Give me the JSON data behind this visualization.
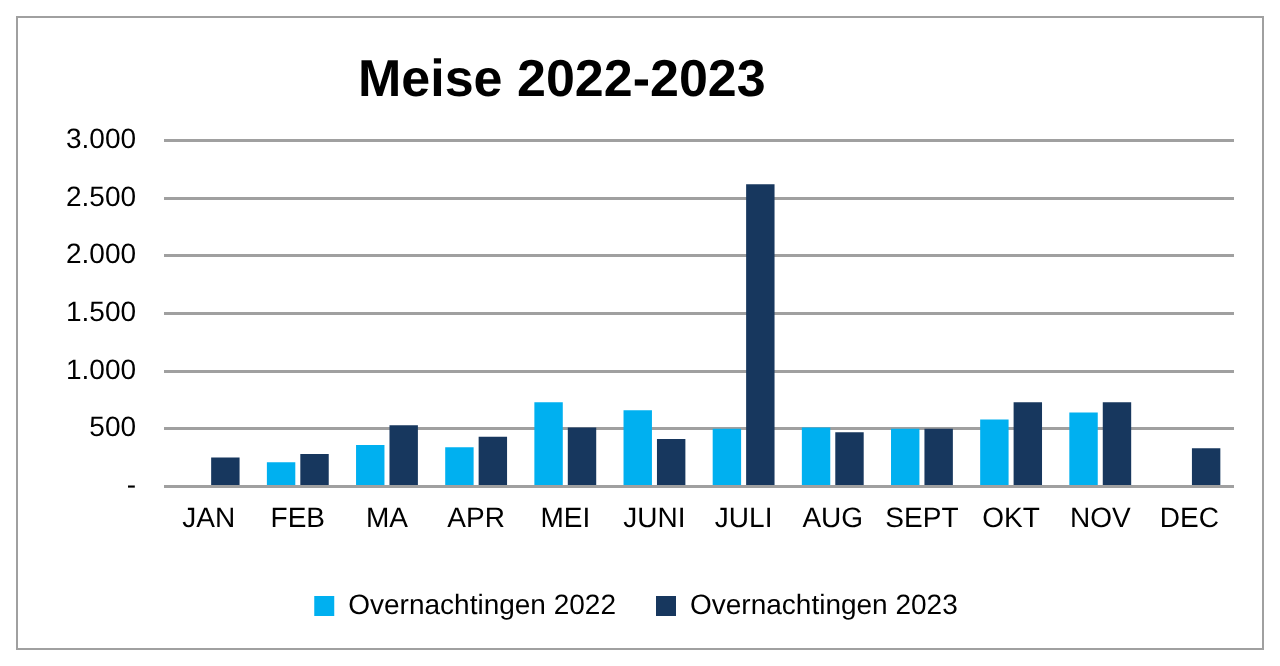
{
  "chart_data": {
    "type": "bar",
    "title": "Meise 2022-2023",
    "categories": [
      "JAN",
      "FEB",
      "MA",
      "APR",
      "MEI",
      "JUNI",
      "JULI",
      "AUG",
      "SEPT",
      "OKT",
      "NOV",
      "DEC"
    ],
    "series": [
      {
        "name": "Overnachtingen 2022",
        "color": "#00b0f0",
        "values": [
          null,
          210,
          360,
          340,
          730,
          660,
          500,
          510,
          500,
          580,
          640,
          null
        ]
      },
      {
        "name": "Overnachtingen 2023",
        "color": "#17375e",
        "values": [
          250,
          280,
          530,
          430,
          510,
          410,
          2620,
          470,
          500,
          730,
          730,
          330
        ]
      }
    ],
    "ylim": [
      0,
      3000
    ],
    "yticks": [
      {
        "value": 0,
        "label": "-"
      },
      {
        "value": 500,
        "label": "500"
      },
      {
        "value": 1000,
        "label": "1.000"
      },
      {
        "value": 1500,
        "label": "1.500"
      },
      {
        "value": 2000,
        "label": "2.000"
      },
      {
        "value": 2500,
        "label": "2.500"
      },
      {
        "value": 3000,
        "label": "3.000"
      }
    ],
    "grid": "y",
    "legend": "bottom"
  }
}
